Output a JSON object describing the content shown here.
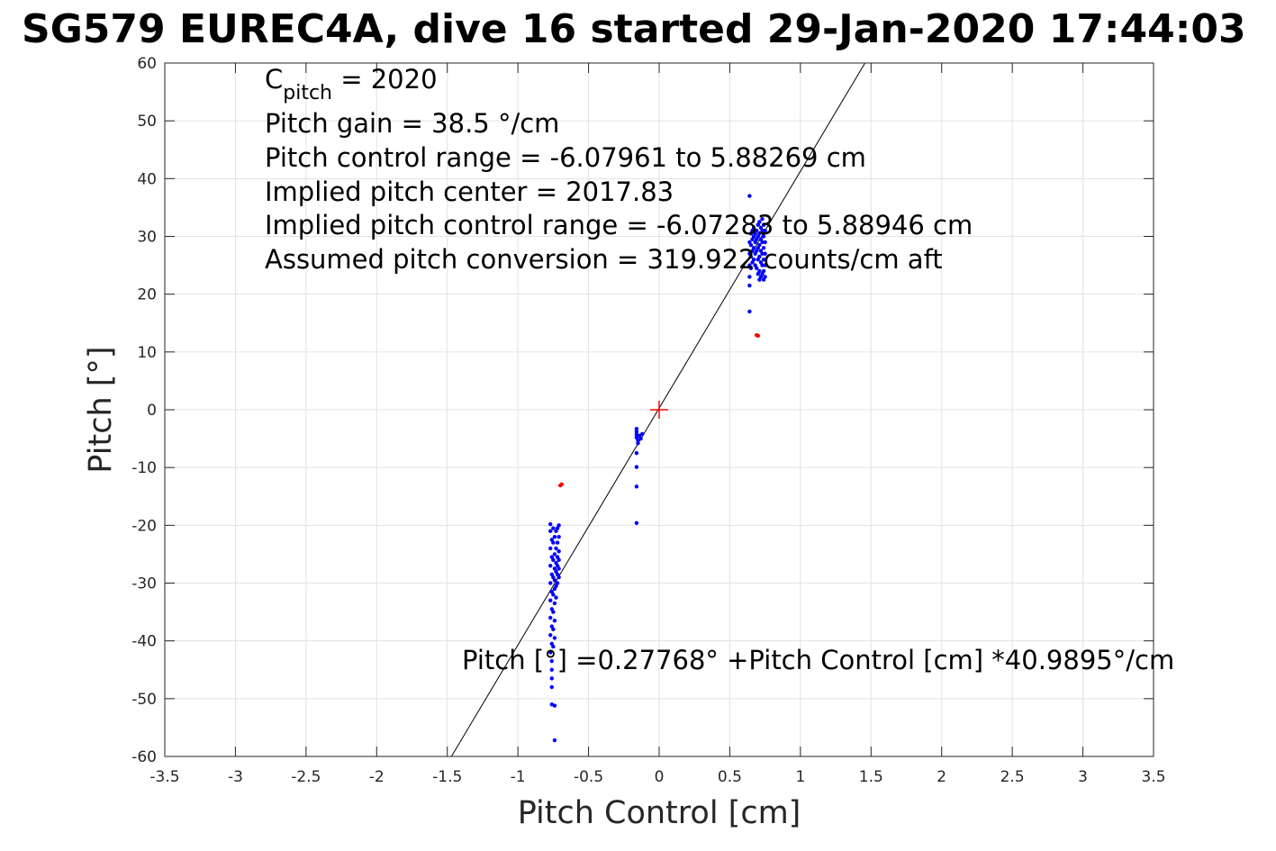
{
  "chart_data": {
    "type": "scatter",
    "title": "SG579 EUREC4A, dive 16 started 29-Jan-2020 17:44:03",
    "xlabel": "Pitch Control [cm]",
    "ylabel": "Pitch [°]",
    "xlim": [
      -3.5,
      3.5
    ],
    "ylim": [
      -60,
      60
    ],
    "xticks": [
      -3.5,
      -3,
      -2.5,
      -2,
      -1.5,
      -1,
      -0.5,
      0,
      0.5,
      1,
      1.5,
      2,
      2.5,
      3,
      3.5
    ],
    "xtick_labels": [
      "-3.5",
      "-3",
      "-2.5",
      "-2",
      "-1.5",
      "-1",
      "-0.5",
      "0",
      "0.5",
      "1",
      "1.5",
      "2",
      "2.5",
      "3",
      "3.5"
    ],
    "yticks": [
      -60,
      -50,
      -40,
      -30,
      -20,
      -10,
      0,
      10,
      20,
      30,
      40,
      50,
      60
    ],
    "ytick_labels": [
      "-60",
      "-50",
      "-40",
      "-30",
      "-20",
      "-10",
      "0",
      "10",
      "20",
      "30",
      "40",
      "50",
      "60"
    ],
    "grid": true,
    "colors": {
      "points": "#0000ff",
      "outliers": "#ff0000",
      "center_marker": "#ff0000",
      "fit_line": "#000000"
    },
    "annotations": {
      "c_pitch_prefix": "C",
      "c_pitch_subscript": "pitch",
      "c_pitch_value": " = 2020",
      "pitch_gain": "Pitch gain = 38.5 °/cm",
      "pitch_control_range": "Pitch control range = -6.07961 to 5.88269 cm",
      "implied_pitch_center": "Implied pitch center = 2017.83",
      "implied_pitch_control_range": "Implied pitch control range = -6.07283 to 5.88946 cm",
      "assumed_pitch_conversion": "Assumed pitch conversion = 319.922 counts/cm aft",
      "fit_equation": "Pitch [°] =0.27768° +Pitch Control [cm] *40.9895°/cm"
    },
    "fit_line": {
      "intercept": 0.27768,
      "slope": 40.9895
    },
    "center_marker": [
      0,
      0
    ],
    "series": [
      {
        "color": "#0000ff",
        "points": [
          [
            -0.77,
            -19.8
          ],
          [
            -0.77,
            -21
          ],
          [
            -0.76,
            -22.5
          ],
          [
            -0.77,
            -24
          ],
          [
            -0.76,
            -25.5
          ],
          [
            -0.77,
            -27
          ],
          [
            -0.76,
            -28.5
          ],
          [
            -0.77,
            -30
          ],
          [
            -0.76,
            -31.5
          ],
          [
            -0.77,
            -33
          ],
          [
            -0.76,
            -34.5
          ],
          [
            -0.77,
            -36
          ],
          [
            -0.76,
            -37.5
          ],
          [
            -0.77,
            -39
          ],
          [
            -0.76,
            -40.5
          ],
          [
            -0.77,
            -42
          ],
          [
            -0.76,
            -43.5
          ],
          [
            -0.76,
            -45
          ],
          [
            -0.76,
            -46.5
          ],
          [
            -0.76,
            -48
          ],
          [
            -0.75,
            -20.5
          ],
          [
            -0.75,
            -23
          ],
          [
            -0.75,
            -26
          ],
          [
            -0.75,
            -29
          ],
          [
            -0.75,
            -32
          ],
          [
            -0.75,
            -35
          ],
          [
            -0.75,
            -38
          ],
          [
            -0.75,
            -41
          ],
          [
            -0.74,
            -22
          ],
          [
            -0.74,
            -25
          ],
          [
            -0.74,
            -27.5
          ],
          [
            -0.74,
            -29.5
          ],
          [
            -0.74,
            -31
          ],
          [
            -0.74,
            -33.5
          ],
          [
            -0.74,
            -36.5
          ],
          [
            -0.74,
            -39.5
          ],
          [
            -0.73,
            -21
          ],
          [
            -0.73,
            -24
          ],
          [
            -0.73,
            -26.5
          ],
          [
            -0.73,
            -28
          ],
          [
            -0.73,
            -30.5
          ],
          [
            -0.73,
            -32.5
          ],
          [
            -0.72,
            -20.5
          ],
          [
            -0.72,
            -23
          ],
          [
            -0.72,
            -25.5
          ],
          [
            -0.72,
            -27
          ],
          [
            -0.72,
            -28.5
          ],
          [
            -0.72,
            -30
          ],
          [
            -0.71,
            -20
          ],
          [
            -0.71,
            -22
          ],
          [
            -0.71,
            -24.5
          ],
          [
            -0.71,
            -26
          ],
          [
            -0.71,
            -27.5
          ],
          [
            -0.71,
            -29
          ],
          [
            -0.76,
            -51
          ],
          [
            -0.74,
            -51.2
          ],
          [
            -0.74,
            -57.2
          ],
          [
            -0.16,
            -3.3
          ],
          [
            -0.16,
            -3.8
          ],
          [
            -0.16,
            -4.3
          ],
          [
            -0.16,
            -4.8
          ],
          [
            -0.15,
            -5.3
          ],
          [
            -0.15,
            -5.8
          ],
          [
            -0.16,
            -7.5
          ],
          [
            -0.16,
            -9.9
          ],
          [
            -0.16,
            -13.3
          ],
          [
            -0.16,
            -19.6
          ],
          [
            -0.14,
            -4.5
          ],
          [
            -0.13,
            -5
          ],
          [
            -0.12,
            -4.2
          ],
          [
            0.64,
            37
          ],
          [
            0.64,
            29
          ],
          [
            0.64,
            27
          ],
          [
            0.64,
            25
          ],
          [
            0.64,
            23
          ],
          [
            0.64,
            21.5
          ],
          [
            0.64,
            17
          ],
          [
            0.65,
            30.5
          ],
          [
            0.65,
            28.5
          ],
          [
            0.65,
            26.5
          ],
          [
            0.65,
            24.5
          ],
          [
            0.66,
            31
          ],
          [
            0.66,
            29.5
          ],
          [
            0.66,
            27.5
          ],
          [
            0.66,
            25.5
          ],
          [
            0.67,
            31.5
          ],
          [
            0.67,
            30
          ],
          [
            0.67,
            28
          ],
          [
            0.67,
            26
          ],
          [
            0.68,
            30.5
          ],
          [
            0.68,
            29
          ],
          [
            0.68,
            27
          ],
          [
            0.68,
            25
          ],
          [
            0.69,
            31
          ],
          [
            0.69,
            29.5
          ],
          [
            0.69,
            27.5
          ],
          [
            0.69,
            24.5
          ],
          [
            0.7,
            32
          ],
          [
            0.7,
            30
          ],
          [
            0.7,
            28
          ],
          [
            0.7,
            26
          ],
          [
            0.7,
            23.5
          ],
          [
            0.71,
            32.5
          ],
          [
            0.71,
            30.5
          ],
          [
            0.71,
            28.5
          ],
          [
            0.71,
            26.5
          ],
          [
            0.71,
            24
          ],
          [
            0.71,
            22.5
          ],
          [
            0.72,
            31.5
          ],
          [
            0.72,
            29.5
          ],
          [
            0.72,
            27.5
          ],
          [
            0.72,
            25.5
          ],
          [
            0.72,
            23
          ],
          [
            0.73,
            33
          ],
          [
            0.73,
            31
          ],
          [
            0.73,
            29
          ],
          [
            0.73,
            27
          ],
          [
            0.73,
            25
          ],
          [
            0.73,
            23.5
          ],
          [
            0.74,
            32
          ],
          [
            0.74,
            30
          ],
          [
            0.74,
            28
          ],
          [
            0.74,
            26
          ],
          [
            0.74,
            24
          ],
          [
            0.74,
            22.5
          ],
          [
            0.75,
            31
          ],
          [
            0.75,
            29
          ],
          [
            0.75,
            27
          ],
          [
            0.75,
            25
          ],
          [
            0.75,
            23
          ]
        ]
      },
      {
        "color": "#ff0000",
        "points": [
          [
            -0.69,
            -12.9
          ],
          [
            -0.7,
            -13.1
          ],
          [
            0.69,
            12.9
          ],
          [
            0.7,
            12.8
          ]
        ]
      }
    ]
  }
}
